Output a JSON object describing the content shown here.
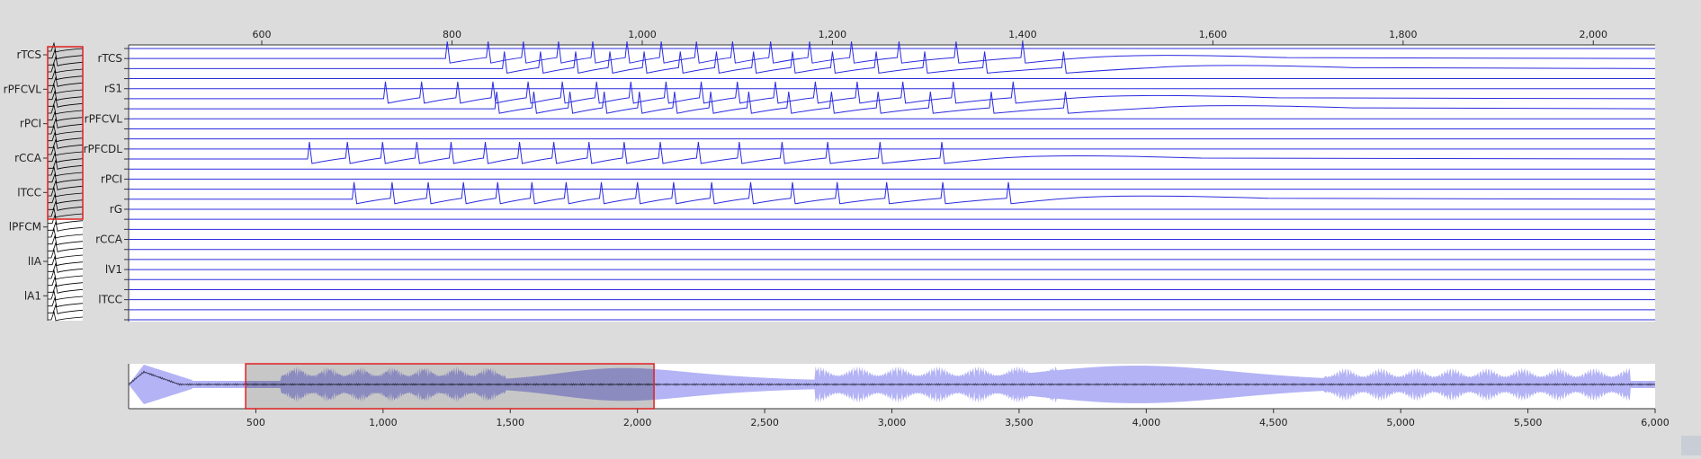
{
  "colors": {
    "background": "#dcdcdc",
    "plot_background": "#ffffff",
    "trace": "#2a2ae0",
    "envelope": "#b3b3f5",
    "mean_line": "#3a3a5a",
    "selection_border": "#e02020",
    "selection_fill": "rgba(0,0,0,0.22)",
    "overview_trace": "#000000"
  },
  "chart_data": [
    {
      "id": "overview_channels",
      "type": "line",
      "description_labels": [
        "rTCS",
        "rPFCVL",
        "rPCI",
        "rCCA",
        "lTCC",
        "lPFCM",
        "lIA",
        "lA1"
      ],
      "visible_range": [
        0,
        24
      ]
    },
    {
      "id": "main_traces",
      "type": "line",
      "xlim": [
        460,
        2065
      ],
      "xticks": [
        600,
        800,
        1000,
        1200,
        1400,
        1600,
        1800,
        2000
      ],
      "xtick_labels": [
        "600",
        "800",
        "1,000",
        "1,200",
        "1,400",
        "1,600",
        "1,800",
        "2,000"
      ],
      "channel_labels": [
        {
          "label": "rTCS",
          "row": 1
        },
        {
          "label": "rS1",
          "row": 4
        },
        {
          "label": "rPFCVL",
          "row": 7
        },
        {
          "label": "rPFCDL",
          "row": 10
        },
        {
          "label": "rPCI",
          "row": 13
        },
        {
          "label": "rG",
          "row": 16
        },
        {
          "label": "rCCA",
          "row": 19
        },
        {
          "label": "lV1",
          "row": 22
        },
        {
          "label": "lTCC",
          "row": 25
        }
      ],
      "row_count": 28,
      "spike_trains": [
        {
          "row": 1,
          "times": [
            795,
            838,
            875,
            912,
            948,
            984,
            1020,
            1057,
            1095,
            1135,
            1176,
            1220,
            1270,
            1330,
            1400
          ],
          "end": 1470
        },
        {
          "row": 2,
          "times": [
            855,
            893,
            930,
            966,
            1002,
            1040,
            1078,
            1117,
            1158,
            1200,
            1246,
            1297,
            1360,
            1443
          ],
          "end": 1540
        },
        {
          "row": 5,
          "times": [
            730,
            768,
            806,
            843,
            880,
            916,
            952,
            988,
            1025,
            1062,
            1100,
            1140,
            1182,
            1226,
            1274,
            1327,
            1390
          ],
          "end": 1460
        },
        {
          "row": 6,
          "times": [
            847,
            886,
            924,
            960,
            997,
            1034,
            1072,
            1112,
            1154,
            1199,
            1248,
            1303,
            1367,
            1445
          ],
          "end": 1540
        },
        {
          "row": 11,
          "times": [
            650,
            690,
            727,
            763,
            799,
            835,
            871,
            907,
            944,
            981,
            1019,
            1059,
            1102,
            1147,
            1195,
            1250,
            1315
          ],
          "end": 1380
        },
        {
          "row": 15,
          "times": [
            697,
            737,
            775,
            812,
            848,
            884,
            920,
            957,
            995,
            1033,
            1073,
            1114,
            1158,
            1205,
            1257,
            1316,
            1385
          ],
          "end": 1450
        }
      ]
    },
    {
      "id": "overview_strip",
      "type": "area",
      "xlim": [
        0,
        6000
      ],
      "xticks": [
        500,
        1000,
        1500,
        2000,
        2500,
        3000,
        3500,
        4000,
        4500,
        5000,
        5500,
        6000
      ],
      "xtick_labels": [
        "500",
        "1,000",
        "1,500",
        "2,000",
        "2,500",
        "3,000",
        "3,500",
        "4,000",
        "4,500",
        "5,000",
        "5,500",
        "6,000"
      ],
      "selection": [
        460,
        2065
      ]
    }
  ]
}
